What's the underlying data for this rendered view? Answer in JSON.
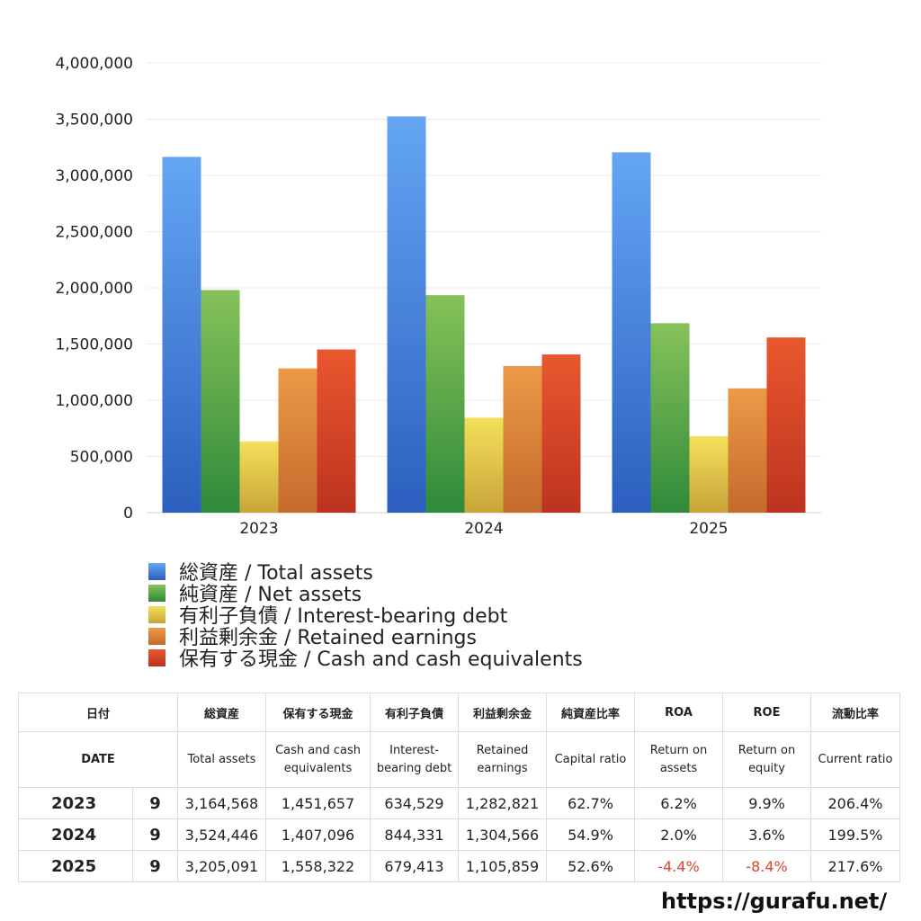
{
  "chart_data": {
    "type": "bar",
    "categories": [
      "2023",
      "2024",
      "2025"
    ],
    "ylim": [
      0,
      4000000
    ],
    "yticks": [
      "0",
      "500,000",
      "1,000,000",
      "1,500,000",
      "2,000,000",
      "2,500,000",
      "3,000,000",
      "3,500,000",
      "4,000,000"
    ],
    "grid": true,
    "legend_position": "bottom",
    "series": [
      {
        "name": "総資産 / Total assets",
        "values": [
          3164568,
          3524446,
          3205091
        ],
        "color_top": "#64a6f4",
        "color_bottom": "#2c5fbf"
      },
      {
        "name": "純資産 / Net assets",
        "values": [
          1980000,
          1935000,
          1685000
        ],
        "color_top": "#86c259",
        "color_bottom": "#2f8a3a"
      },
      {
        "name": "有利子負債 / Interest-bearing debt",
        "values": [
          634529,
          844331,
          679413
        ],
        "color_top": "#f3e05a",
        "color_bottom": "#c9a43a"
      },
      {
        "name": "利益剰余金 / Retained earnings",
        "values": [
          1282821,
          1304566,
          1105859
        ],
        "color_top": "#eb9a48",
        "color_bottom": "#c56a2c"
      },
      {
        "name": "保有する現金 /  Cash and cash equivalents",
        "values": [
          1451657,
          1407096,
          1558322
        ],
        "color_top": "#e9572e",
        "color_bottom": "#bd3320"
      }
    ]
  },
  "table": {
    "header_ja": [
      "日付",
      "総資産",
      "保有する現金",
      "有利子負債",
      "利益剰余金",
      "純資産比率",
      "ROA",
      "ROE",
      "流動比率"
    ],
    "header_en": [
      "DATE",
      "Total assets",
      "Cash and cash equivalents",
      "Interest-bearing debt",
      "Retained earnings",
      "Capital ratio",
      "Return on assets",
      "Return on equity",
      "Current ratio"
    ],
    "rows": [
      {
        "year": "2023",
        "month": "9",
        "total_assets": "3,164,568",
        "cash": "1,451,657",
        "debt": "634,529",
        "retained": "1,282,821",
        "capital_ratio": "62.7%",
        "roa": "6.2%",
        "roe": "9.9%",
        "current_ratio": "206.4%"
      },
      {
        "year": "2024",
        "month": "9",
        "total_assets": "3,524,446",
        "cash": "1,407,096",
        "debt": "844,331",
        "retained": "1,304,566",
        "capital_ratio": "54.9%",
        "roa": "2.0%",
        "roe": "3.6%",
        "current_ratio": "199.5%"
      },
      {
        "year": "2025",
        "month": "9",
        "total_assets": "3,205,091",
        "cash": "1,558,322",
        "debt": "679,413",
        "retained": "1,105,859",
        "capital_ratio": "52.6%",
        "roa": "-4.4%",
        "roe": "-8.4%",
        "current_ratio": "217.6%"
      }
    ]
  },
  "footer_url": "https://gurafu.net/"
}
